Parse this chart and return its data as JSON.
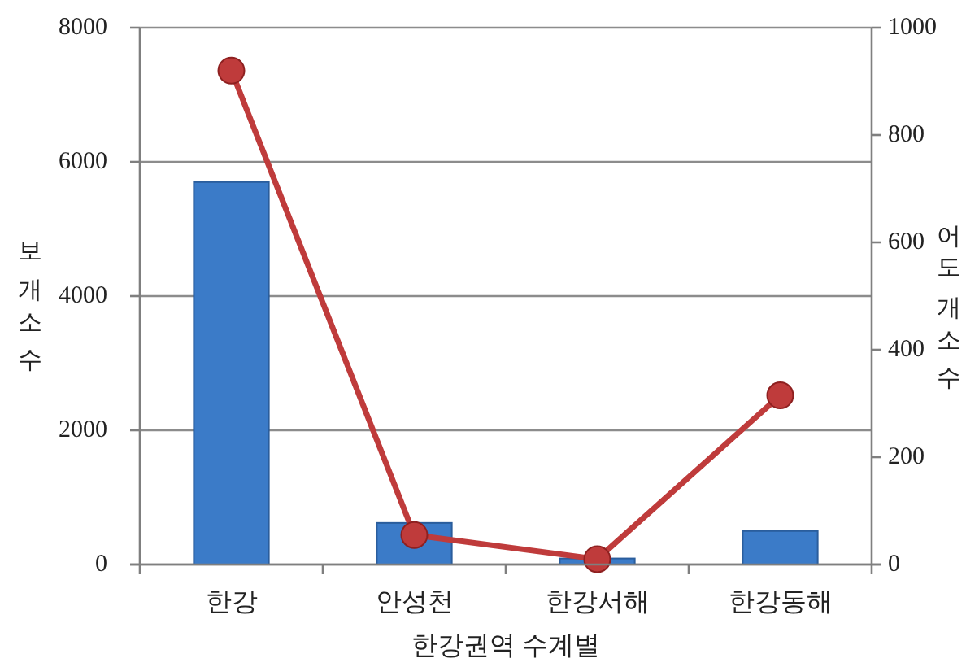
{
  "chart_data": {
    "type": "bar",
    "xlabel": "한강권역 수계별",
    "ylabel": "보개소수",
    "y2label": "어도개소수",
    "categories": [
      "한강",
      "안성천",
      "한강서해",
      "한강동해"
    ],
    "series": [
      {
        "color": "#3b7bc8",
        "values": [
          5700,
          620,
          90,
          500
        ]
      },
      {
        "type": "line",
        "axis": "y2",
        "color": "#bf3b3b",
        "values": [
          920,
          55,
          10,
          315
        ]
      }
    ],
    "ylim": [
      0,
      8000
    ],
    "yticks": [
      0,
      2000,
      4000,
      6000,
      8000
    ],
    "y2lim": [
      0,
      1000
    ],
    "y2ticks": [
      0,
      200,
      400,
      600,
      800,
      1000
    ],
    "grid": "y",
    "marker": "circle",
    "line_style": "solid"
  }
}
